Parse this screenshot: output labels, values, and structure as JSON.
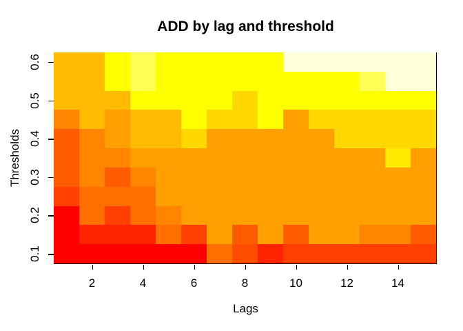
{
  "chart_data": {
    "type": "heatmap",
    "title": "ADD by lag and threshold",
    "xlabel": "Lags",
    "ylabel": "Thresholds",
    "legend": "none",
    "x_values": [
      1,
      2,
      3,
      4,
      5,
      6,
      7,
      8,
      9,
      10,
      11,
      12,
      13,
      14,
      15
    ],
    "y_values_top_to_bottom": [
      0.6,
      0.55,
      0.5,
      0.45,
      0.4,
      0.35,
      0.3,
      0.25,
      0.2,
      0.15,
      0.1
    ],
    "x_ticks": [
      "2",
      "4",
      "6",
      "8",
      "10",
      "12",
      "14"
    ],
    "x_tick_lags": [
      2,
      4,
      6,
      8,
      10,
      12,
      14
    ],
    "y_ticks": [
      "0.1",
      "0.2",
      "0.3",
      "0.4",
      "0.5",
      "0.6"
    ],
    "y_tick_values": [
      0.1,
      0.2,
      0.3,
      0.4,
      0.5,
      0.6
    ],
    "palette": {
      "R": "#FF0000",
      "R2": "#FF2400",
      "OR": "#FF4000",
      "OR2": "#FF4D00",
      "DO": "#FF5C00",
      "O": "#FF6F00",
      "O2": "#FF8500",
      "A": "#FFA000",
      "GA": "#FFBB00",
      "G": "#FFD800",
      "G2": "#FFE900",
      "Y": "#FFFF00",
      "PY": "#FFFF55",
      "CR": "#FFFFD8"
    },
    "grid_rows_top_to_bottom": [
      [
        "GA",
        "GA",
        "Y",
        "PY",
        "Y",
        "Y",
        "Y",
        "Y",
        "Y",
        "CR",
        "CR",
        "CR",
        "CR",
        "CR",
        "CR"
      ],
      [
        "GA",
        "GA",
        "Y",
        "PY",
        "Y",
        "Y",
        "Y",
        "Y",
        "Y",
        "Y",
        "Y",
        "Y",
        "PY",
        "CR",
        "CR"
      ],
      [
        "GA",
        "GA",
        "GA",
        "Y",
        "Y",
        "Y",
        "Y",
        "G",
        "Y",
        "Y",
        "Y",
        "Y",
        "Y",
        "Y",
        "Y"
      ],
      [
        "O2",
        "GA",
        "A",
        "GA",
        "GA",
        "Y",
        "G",
        "G",
        "Y",
        "A",
        "G",
        "G",
        "G",
        "G",
        "G"
      ],
      [
        "DO",
        "O2",
        "A",
        "GA",
        "GA",
        "G",
        "A",
        "A",
        "A",
        "A",
        "A",
        "G",
        "G",
        "G",
        "G"
      ],
      [
        "DO",
        "O2",
        "O2",
        "A",
        "A",
        "A",
        "A",
        "A",
        "A",
        "A",
        "A",
        "A",
        "A",
        "G2",
        "A"
      ],
      [
        "DO",
        "O2",
        "DO",
        "O2",
        "A",
        "A",
        "A",
        "A",
        "A",
        "A",
        "A",
        "A",
        "A",
        "A",
        "A"
      ],
      [
        "OR",
        "O",
        "O",
        "O",
        "A",
        "A",
        "A",
        "A",
        "A",
        "A",
        "A",
        "A",
        "A",
        "A",
        "A"
      ],
      [
        "R",
        "O",
        "OR",
        "O",
        "O2",
        "A",
        "A",
        "A",
        "A",
        "A",
        "A",
        "A",
        "A",
        "A",
        "A"
      ],
      [
        "R",
        "R2",
        "R2",
        "R2",
        "O",
        "OR",
        "A",
        "DO",
        "A",
        "DO",
        "A",
        "A",
        "O2",
        "O2",
        "DO"
      ],
      [
        "R",
        "R",
        "R",
        "R",
        "R",
        "R",
        "O",
        "OR2",
        "R2",
        "OR",
        "OR",
        "OR",
        "OR",
        "OR",
        "OR"
      ]
    ]
  }
}
